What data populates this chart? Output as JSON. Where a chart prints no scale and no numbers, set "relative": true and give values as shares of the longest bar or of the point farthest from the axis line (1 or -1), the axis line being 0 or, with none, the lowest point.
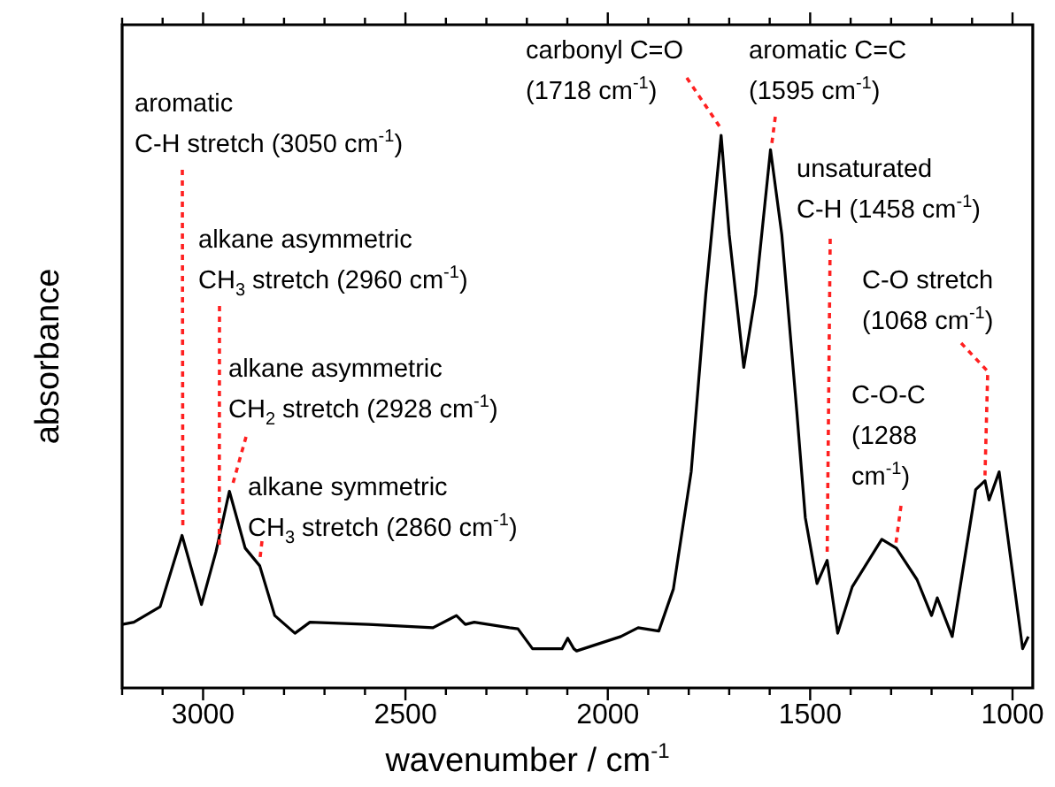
{
  "chart_data": {
    "type": "line",
    "xlabel": "wavenumber / cm$^{-1}$",
    "ylabel": "absorbance",
    "relative": true,
    "xlim": [
      3200,
      950
    ],
    "xticks": [
      {
        "value": 3200,
        "label": null
      },
      {
        "value": 3100,
        "label": null
      },
      3000,
      {
        "value": 2900,
        "label": null
      },
      {
        "value": 2800,
        "label": null
      },
      {
        "value": 2700,
        "label": null
      },
      {
        "value": 2600,
        "label": null
      },
      2500,
      {
        "value": 2400,
        "label": null
      },
      {
        "value": 2300,
        "label": null
      },
      {
        "value": 2200,
        "label": null
      },
      {
        "value": 2100,
        "label": null
      },
      2000,
      {
        "value": 1900,
        "label": null
      },
      {
        "value": 1800,
        "label": null
      },
      {
        "value": 1700,
        "label": null
      },
      {
        "value": 1600,
        "label": null
      },
      1500,
      {
        "value": 1400,
        "label": null
      },
      {
        "value": 1300,
        "label": null
      },
      {
        "value": 1200,
        "label": null
      },
      {
        "value": 1100,
        "label": null
      },
      1000
    ],
    "grid": false,
    "legend": false,
    "marker": "none",
    "line_style": "solid",
    "series": [
      {
        "color": "#000000",
        "x": [
          3200,
          3171,
          3106,
          3052,
          3004,
          2968,
          2935,
          2896,
          2860,
          2823,
          2773,
          2736,
          2591,
          2432,
          2374,
          2352,
          2330,
          2243,
          2222,
          2186,
          2113,
          2099,
          2084,
          2077,
          1968,
          1925,
          1874,
          1838,
          1794,
          1758,
          1720,
          1700,
          1664,
          1635,
          1598,
          1570,
          1533,
          1512,
          1483,
          1458,
          1432,
          1396,
          1323,
          1287,
          1236,
          1200,
          1186,
          1149,
          1091,
          1068,
          1058,
          1033,
          1004,
          975,
          961
        ],
        "values": [
          0.115,
          0.119,
          0.147,
          0.276,
          0.151,
          0.247,
          0.356,
          0.253,
          0.221,
          0.131,
          0.099,
          0.119,
          0.115,
          0.109,
          0.131,
          0.115,
          0.119,
          0.109,
          0.107,
          0.071,
          0.071,
          0.09,
          0.071,
          0.067,
          0.093,
          0.109,
          0.103,
          0.179,
          0.391,
          0.712,
          1.0,
          0.82,
          0.58,
          0.712,
          0.974,
          0.82,
          0.5,
          0.308,
          0.189,
          0.231,
          0.099,
          0.183,
          0.269,
          0.253,
          0.196,
          0.131,
          0.163,
          0.093,
          0.359,
          0.375,
          0.34,
          0.391,
          0.231,
          0.071,
          0.093
        ]
      }
    ],
    "annotations": [
      {
        "text": "aromatic\nC-H stretch (3050 cm$^{-1}$)",
        "x": 3050,
        "y": 0.276
      },
      {
        "text": "alkane asymmetric\nCH$_{3}$ stretch (2960 cm$^{-1}$)",
        "x": 2960,
        "y": 0.247
      },
      {
        "text": "alkane asymmetric\nCH$_{2}$ stretch (2928 cm$^{-1}$)",
        "x": 2928,
        "y": 0.356
      },
      {
        "text": "alkane symmetric\nCH$_{3}$ stretch (2860 cm$^{-1}$)",
        "x": 2860,
        "y": 0.221
      },
      {
        "text": "carbonyl C=O\n(1718 cm$^{-1}$)",
        "x": 1718,
        "y": 1.0
      },
      {
        "text": "aromatic C=C\n(1595 cm$^{-1}$)",
        "x": 1595,
        "y": 0.974
      },
      {
        "text": "unsaturated\nC-H (1458 cm$^{-1}$)",
        "x": 1458,
        "y": 0.231
      },
      {
        "text": "C-O-C\n(1288\ncm$^{-1}$)",
        "x": 1288,
        "y": 0.253
      },
      {
        "text": "C-O stretch\n(1068 cm$^{-1}$)",
        "x": 1068,
        "y": 0.375
      }
    ]
  }
}
